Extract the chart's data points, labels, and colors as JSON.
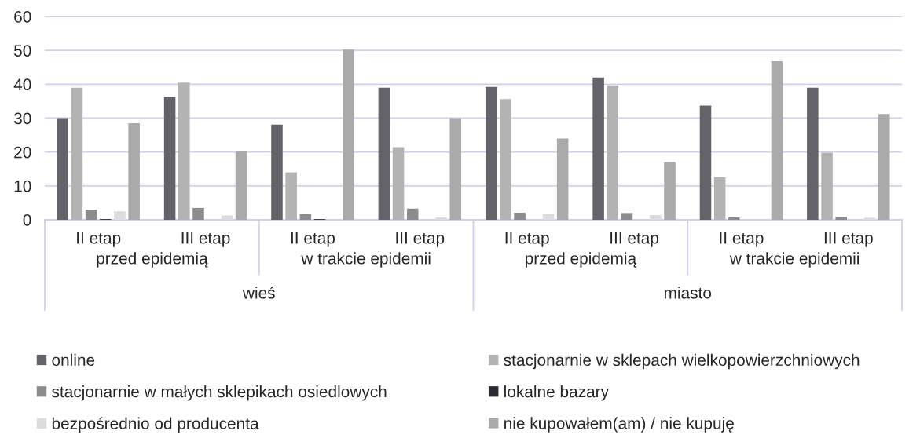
{
  "chart_data": {
    "type": "bar",
    "categories": [
      "II etap",
      "III etap",
      "II etap",
      "III etap",
      "II etap",
      "III etap",
      "II etap",
      "III etap"
    ],
    "annotations": [
      "przed epidemią",
      "w trakcie epidemii",
      "przed epidemią",
      "w trakcie epidemii",
      "wieś",
      "miasto"
    ],
    "series": [
      {
        "name": "online",
        "color": "#646369",
        "values": [
          30,
          36.3,
          28.1,
          39,
          39.2,
          42,
          33.7,
          39
        ]
      },
      {
        "name": "stacjonarnie w sklepach wielkopowierzchniowych",
        "color": "#b3b3b3",
        "values": [
          39,
          40.5,
          14,
          21.4,
          35.6,
          39.7,
          12.5,
          19.8
        ]
      },
      {
        "name": "stacjonarnie w małych sklepikach osiedlowych",
        "color": "#8c8c8c",
        "values": [
          3,
          3.5,
          1.7,
          3.3,
          2.1,
          2,
          0.7,
          0.9
        ]
      },
      {
        "name": "lokalne bazary",
        "color": "#2b2b35",
        "values": [
          0.2,
          null,
          0.2,
          0,
          0,
          null,
          null,
          0
        ]
      },
      {
        "name": "bezpośrednio od producenta",
        "color": "#dcdcdc",
        "values": [
          2.5,
          1.3,
          null,
          0.7,
          1.7,
          1.4,
          null,
          0.6
        ]
      },
      {
        "name": "nie kupowałem(am) / nie kupuję",
        "color": "#aaaaaa",
        "values": [
          28.5,
          20.4,
          50.2,
          30,
          24,
          17,
          46.8,
          31.2
        ]
      }
    ],
    "ylim": [
      0,
      60
    ],
    "yticks": [
      0,
      10,
      20,
      30,
      40,
      50,
      60
    ],
    "grid": "y",
    "legend": "bottom"
  }
}
